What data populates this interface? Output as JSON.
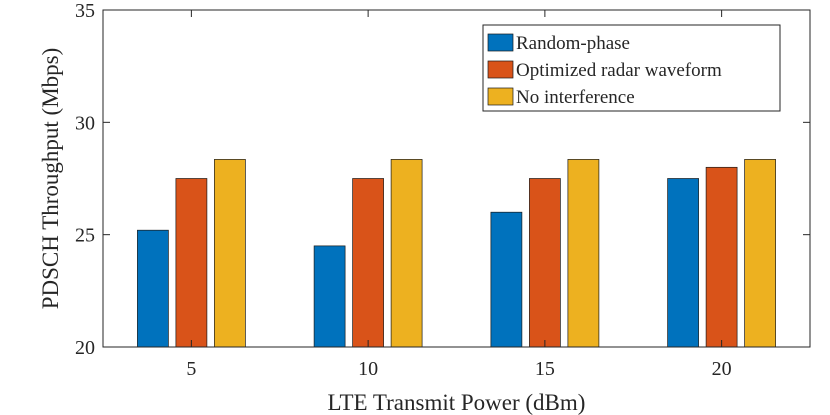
{
  "chart_data": {
    "type": "bar",
    "title": "",
    "xlabel": "LTE Transmit Power (dBm)",
    "ylabel": "PDSCH Throughput (Mbps)",
    "categories": [
      "5",
      "10",
      "15",
      "20"
    ],
    "ylim": [
      20,
      35
    ],
    "yticks": [
      20,
      25,
      30,
      35
    ],
    "grid": false,
    "legend_position": "top-right",
    "series": [
      {
        "name": "Random-phase",
        "color": "#0072BD",
        "values": [
          25.2,
          24.5,
          26.0,
          27.5
        ]
      },
      {
        "name": "Optimized radar waveform",
        "color": "#D95319",
        "values": [
          27.5,
          27.5,
          27.5,
          28.0
        ]
      },
      {
        "name": "No interference",
        "color": "#EDB120",
        "values": [
          28.35,
          28.35,
          28.35,
          28.35
        ]
      }
    ]
  }
}
